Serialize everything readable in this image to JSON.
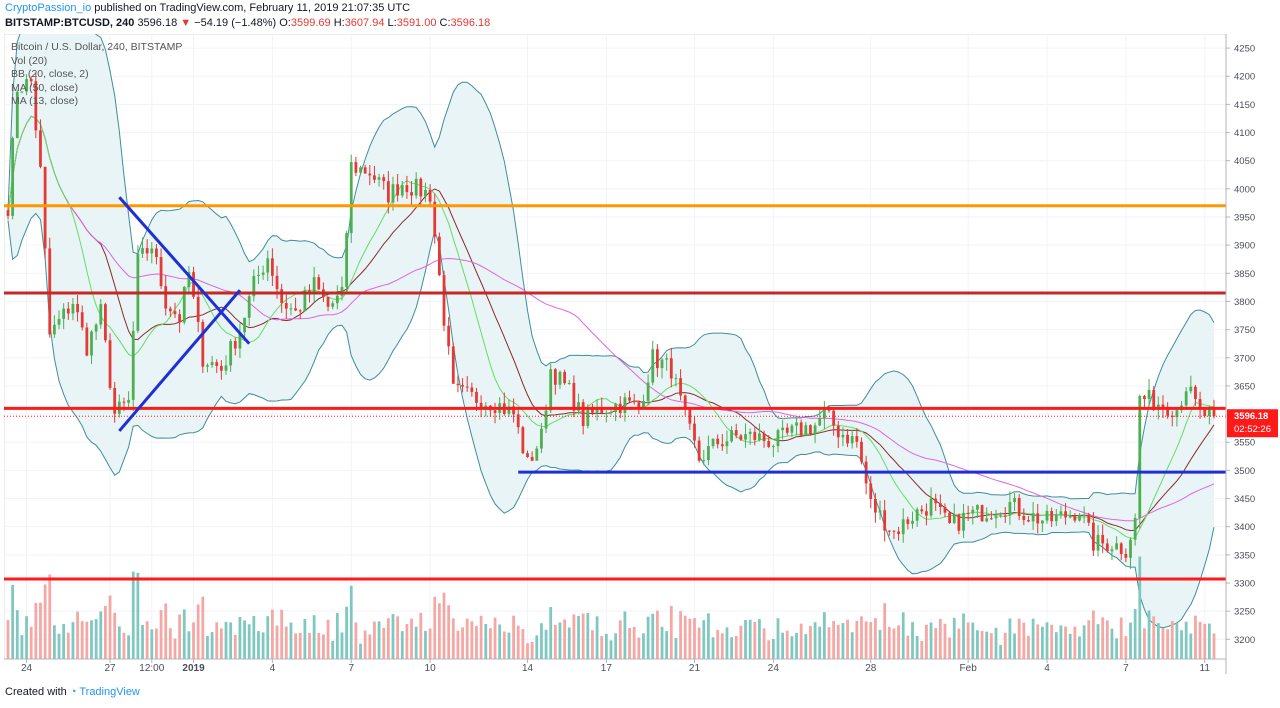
{
  "header": {
    "author": "CryptoPassion_io",
    "published": "published on TradingView.com, February 11, 2019 21:07:35 UTC",
    "symbol": "BITSTAMP:BTCUSD, 240",
    "last": "3596.18",
    "change_arrow": "▼",
    "change": "−54.19 (−1.48%)",
    "o_label": "O:",
    "o": "3599.69",
    "h_label": "H:",
    "h": "3607.94",
    "l_label": "L:",
    "l": "3591.00",
    "c_label": "C:",
    "c": "3596.18"
  },
  "legend": {
    "title": "Bitcoin / U.S. Dollar, 240, BITSTAMP",
    "vol": "Vol (20)",
    "bb": "BB (20, close, 2)",
    "ma50": "MA (50, close)",
    "ma13": "MA (13, close)"
  },
  "footer": {
    "created_with": "Created with",
    "brand": "TradingView"
  },
  "price_tag": {
    "price": "3596.18",
    "countdown": "02:52:26"
  },
  "colors": {
    "up": "#4caf50",
    "down": "#e53935",
    "vol_up": "#7ec8c0",
    "vol_down": "#f4a7a3",
    "bb_line": "#3f8e9a",
    "bb_fill": "#e8f4f6",
    "ma13": "#66dd66",
    "ma50": "#e066e0",
    "mid": "#8b2a2a",
    "orange_line": "#ff9800",
    "dark_red_line": "#c62828",
    "red_line": "#ff1a1a",
    "blue_line": "#1e2fd6",
    "tag_bg": "#ff1a1a",
    "brand_blue": "#2196f3"
  },
  "chart_data": {
    "type": "candlestick",
    "title": "Bitcoin / U.S. Dollar, 240, BITSTAMP",
    "ylim": [
      3165,
      4275
    ],
    "y_ticks": [
      3200,
      3250,
      3300,
      3350,
      3400,
      3450,
      3500,
      3550,
      3600,
      3650,
      3700,
      3750,
      3800,
      3850,
      3900,
      3950,
      4000,
      4050,
      4100,
      4150,
      4200,
      4250
    ],
    "x_range": [
      0,
      260
    ],
    "x_ticks": [
      {
        "label": "24",
        "i": 4
      },
      {
        "label": "27",
        "i": 22
      },
      {
        "label": "12:00",
        "i": 31
      },
      {
        "label": "2019",
        "i": 40
      },
      {
        "label": "4",
        "i": 57
      },
      {
        "label": "7",
        "i": 74
      },
      {
        "label": "10",
        "i": 91
      },
      {
        "label": "14",
        "i": 112
      },
      {
        "label": "17",
        "i": 129
      },
      {
        "label": "21",
        "i": 148
      },
      {
        "label": "24",
        "i": 165
      },
      {
        "label": "28",
        "i": 186
      },
      {
        "label": "Feb",
        "i": 207
      },
      {
        "label": "4",
        "i": 224
      },
      {
        "label": "7",
        "i": 241
      },
      {
        "label": "11",
        "i": 258
      }
    ],
    "horizontal_levels": [
      {
        "name": "orange",
        "price": 3970,
        "color": "#ff9800"
      },
      {
        "name": "resistance",
        "price": 3815,
        "color": "#c62828"
      },
      {
        "name": "support-red",
        "price": 3610,
        "color": "#ff1a1a"
      },
      {
        "name": "support-blue",
        "price": 3497,
        "color": "#1e2fd6",
        "from_i": 110
      },
      {
        "name": "bottom-red",
        "price": 3307,
        "color": "#ff1a1a"
      }
    ],
    "trendlines": [
      {
        "from": [
          24,
          3985
        ],
        "to": [
          52,
          3725
        ]
      },
      {
        "from": [
          24,
          3570
        ],
        "to": [
          50,
          3820
        ]
      }
    ],
    "anchors": [
      [
        0,
        3970
      ],
      [
        2,
        4180
      ],
      [
        5,
        4190
      ],
      [
        7,
        4030
      ],
      [
        9,
        3740
      ],
      [
        14,
        3800
      ],
      [
        17,
        3720
      ],
      [
        20,
        3780
      ],
      [
        23,
        3600
      ],
      [
        26,
        3620
      ],
      [
        28,
        3870
      ],
      [
        31,
        3900
      ],
      [
        34,
        3800
      ],
      [
        37,
        3770
      ],
      [
        39,
        3850
      ],
      [
        42,
        3700
      ],
      [
        46,
        3680
      ],
      [
        50,
        3750
      ],
      [
        53,
        3830
      ],
      [
        56,
        3880
      ],
      [
        59,
        3800
      ],
      [
        62,
        3780
      ],
      [
        66,
        3830
      ],
      [
        69,
        3790
      ],
      [
        72,
        3810
      ],
      [
        74,
        4040
      ],
      [
        78,
        4030
      ],
      [
        82,
        3990
      ],
      [
        85,
        4010
      ],
      [
        88,
        4000
      ],
      [
        91,
        3990
      ],
      [
        94,
        3770
      ],
      [
        96,
        3640
      ],
      [
        100,
        3630
      ],
      [
        105,
        3620
      ],
      [
        109,
        3600
      ],
      [
        112,
        3510
      ],
      [
        115,
        3560
      ],
      [
        117,
        3680
      ],
      [
        121,
        3640
      ],
      [
        124,
        3590
      ],
      [
        128,
        3610
      ],
      [
        133,
        3620
      ],
      [
        136,
        3610
      ],
      [
        139,
        3700
      ],
      [
        143,
        3680
      ],
      [
        146,
        3590
      ],
      [
        149,
        3520
      ],
      [
        153,
        3550
      ],
      [
        157,
        3560
      ],
      [
        161,
        3560
      ],
      [
        165,
        3550
      ],
      [
        170,
        3570
      ],
      [
        174,
        3580
      ],
      [
        176,
        3600
      ],
      [
        179,
        3570
      ],
      [
        183,
        3550
      ],
      [
        186,
        3440
      ],
      [
        188,
        3420
      ],
      [
        191,
        3390
      ],
      [
        195,
        3420
      ],
      [
        199,
        3440
      ],
      [
        203,
        3400
      ],
      [
        207,
        3420
      ],
      [
        212,
        3430
      ],
      [
        216,
        3440
      ],
      [
        220,
        3420
      ],
      [
        224,
        3410
      ],
      [
        228,
        3420
      ],
      [
        231,
        3430
      ],
      [
        234,
        3370
      ],
      [
        238,
        3370
      ],
      [
        241,
        3360
      ],
      [
        243,
        3410
      ],
      [
        244,
        3630
      ],
      [
        248,
        3620
      ],
      [
        252,
        3610
      ],
      [
        254,
        3650
      ],
      [
        257,
        3600
      ],
      [
        260,
        3596
      ]
    ],
    "last_price": 3596.18
  }
}
